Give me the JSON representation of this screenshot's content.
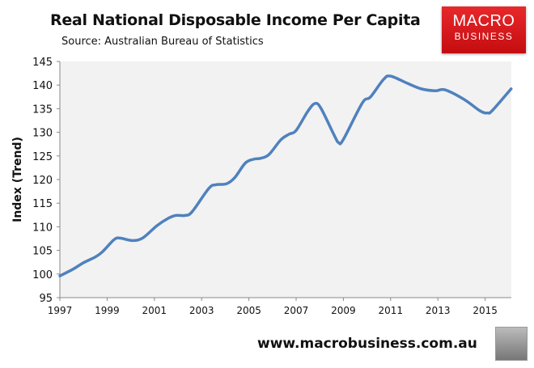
{
  "chart_data": {
    "type": "line",
    "title": "Real National Disposable Income Per Capita",
    "subtitle": "Source: Australian Bureau of Statistics",
    "xlabel": "",
    "ylabel": "Index (Trend)",
    "xlim": [
      1997,
      2016.2
    ],
    "ylim": [
      95,
      145
    ],
    "x_ticks": [
      "1997",
      "1999",
      "2001",
      "2003",
      "2005",
      "2007",
      "2009",
      "2011",
      "2013",
      "2015"
    ],
    "y_ticks": [
      "95",
      "100",
      "105",
      "110",
      "115",
      "120",
      "125",
      "130",
      "135",
      "140",
      "145"
    ],
    "grid": false,
    "line_color": "#4f81bd",
    "series": [
      {
        "x": [
          1997.0,
          1997.55,
          1998.0,
          1998.5,
          1998.8,
          1999.3,
          1999.55,
          2000.05,
          2000.5,
          2001.1,
          2001.55,
          2001.9,
          2002.3,
          2002.6,
          2003.3,
          2003.6,
          2004.05,
          2004.4,
          2004.85,
          2005.2,
          2005.5,
          2005.85,
          2006.35,
          2006.7,
          2007.0,
          2007.5,
          2007.8,
          2008.05,
          2008.6,
          2008.8,
          2009.0,
          2009.8,
          2010.15,
          2010.7,
          2011.0,
          2011.7,
          2012.3,
          2012.9,
          2013.3,
          2014.1,
          2014.8,
          2015.1,
          2015.3,
          2016.1
        ],
        "y": [
          99.6,
          101.0,
          102.4,
          103.6,
          104.7,
          107.3,
          107.6,
          107.1,
          107.6,
          110.2,
          111.7,
          112.4,
          112.4,
          113.2,
          118.1,
          118.9,
          119.1,
          120.4,
          123.5,
          124.3,
          124.5,
          125.3,
          128.4,
          129.6,
          130.4,
          134.5,
          136.1,
          135.1,
          129.5,
          127.8,
          128.5,
          136.2,
          137.5,
          141.2,
          141.9,
          140.4,
          139.2,
          138.8,
          139.0,
          137.0,
          134.5,
          134.1,
          134.6,
          139.2
        ]
      }
    ]
  },
  "logo": {
    "line1": "MACRO",
    "line2": "BUSINESS"
  },
  "footer_url": "www.macrobusiness.com.au"
}
